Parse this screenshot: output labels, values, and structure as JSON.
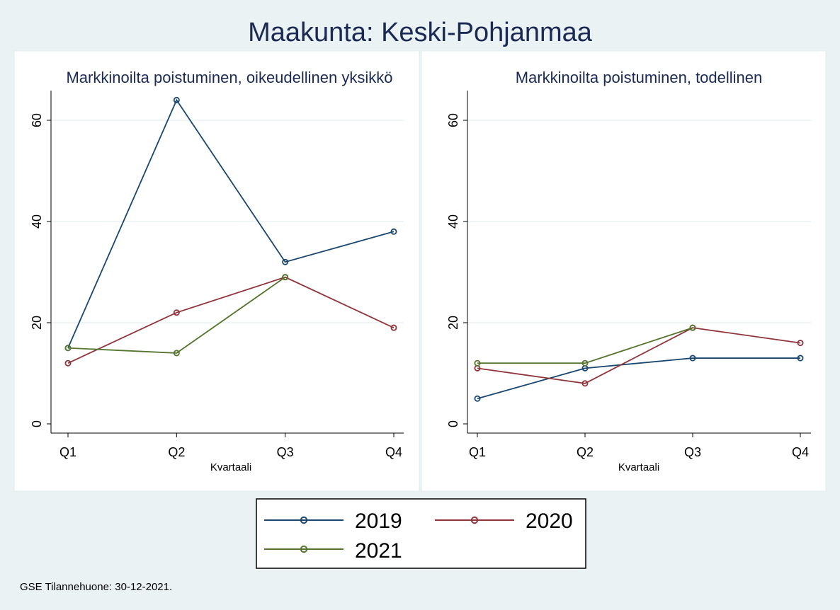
{
  "figure": {
    "title": "Maakunta: Keski-Pohjanmaa",
    "note": "GSE Tilannehuone: 30-12-2021.",
    "background": "#eaf2f3",
    "panel_background": "#ffffff",
    "text_color": "#1a2a55"
  },
  "legend": {
    "position": "bottom",
    "entries": [
      {
        "label": "2019",
        "color": "#1a476f"
      },
      {
        "label": "2020",
        "color": "#90353b"
      },
      {
        "label": "2021",
        "color": "#55752f"
      }
    ]
  },
  "chart_data": [
    {
      "type": "line",
      "title": "Markkinoilta poistuminen, oikeudellinen yksikkö",
      "xlabel": "Kvartaali",
      "ylabel": "",
      "categories": [
        "Q1",
        "Q2",
        "Q3",
        "Q4"
      ],
      "yticks": [
        "0",
        "20",
        "40",
        "60"
      ],
      "ylim": [
        0,
        64
      ],
      "grid": true,
      "series": [
        {
          "name": "2019",
          "color": "#1a476f",
          "values": [
            15,
            64,
            32,
            38
          ]
        },
        {
          "name": "2020",
          "color": "#90353b",
          "values": [
            12,
            22,
            29,
            19
          ]
        },
        {
          "name": "2021",
          "color": "#55752f",
          "values": [
            15,
            14,
            29,
            null
          ]
        }
      ]
    },
    {
      "type": "line",
      "title": "Markkinoilta poistuminen, todellinen",
      "xlabel": "Kvartaali",
      "ylabel": "",
      "categories": [
        "Q1",
        "Q2",
        "Q3",
        "Q4"
      ],
      "yticks": [
        "0",
        "20",
        "40",
        "60"
      ],
      "ylim": [
        0,
        64
      ],
      "grid": true,
      "series": [
        {
          "name": "2019",
          "color": "#1a476f",
          "values": [
            5,
            11,
            13,
            13
          ]
        },
        {
          "name": "2020",
          "color": "#90353b",
          "values": [
            11,
            8,
            19,
            16
          ]
        },
        {
          "name": "2021",
          "color": "#55752f",
          "values": [
            12,
            12,
            19,
            null
          ]
        }
      ]
    }
  ]
}
